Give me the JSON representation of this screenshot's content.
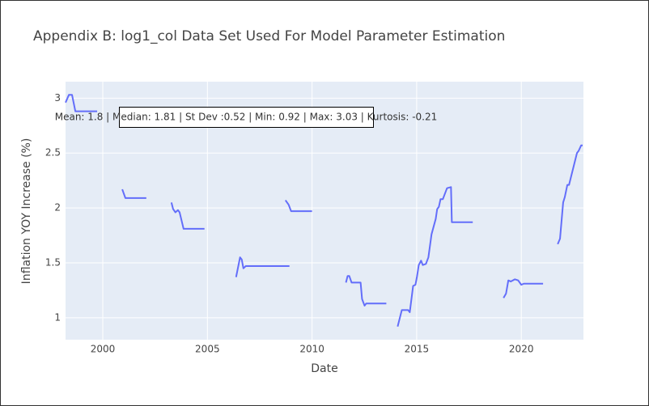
{
  "chart_data": {
    "type": "line",
    "title": "Appendix B: log1_col Data Set Used For Model Parameter Estimation",
    "x_label": "Date",
    "y_label": "Inflation YOY Increase (%)",
    "annotation": "Mean: 1.8 | Median: 1.81 | St Dev :0.52 | Min: 0.92 | Max: 3.03 | Kurtosis: -0.21",
    "xlim": [
      1998.22,
      2022.97
    ],
    "ylim": [
      0.8,
      3.15
    ],
    "xticks": [
      2000,
      2005,
      2010,
      2015,
      2020
    ],
    "yticks": [
      1,
      1.5,
      2,
      2.5,
      3
    ],
    "grid": true,
    "x": [
      1998.22,
      1998.38,
      1998.53,
      1998.69,
      1999.73,
      null,
      2000.93,
      2001.08,
      2002.08,
      null,
      2003.28,
      2003.36,
      2003.47,
      2003.59,
      2003.67,
      2003.86,
      2004.86,
      null,
      2006.37,
      2006.56,
      2006.64,
      2006.72,
      2006.83,
      2008.92,
      null,
      2008.73,
      2008.88,
      2009.0,
      2010.0,
      null,
      2011.62,
      2011.7,
      2011.78,
      2011.89,
      2012.32,
      2012.39,
      2012.51,
      2012.59,
      2013.55,
      null,
      2014.09,
      2014.29,
      2014.59,
      2014.67,
      2014.83,
      2014.94,
      2015.02,
      2015.1,
      2015.21,
      2015.29,
      2015.44,
      2015.56,
      2015.71,
      2015.91,
      2015.98,
      2016.06,
      2016.14,
      2016.25,
      2016.45,
      2016.64,
      2016.68,
      2017.68,
      null,
      2019.15,
      2019.27,
      2019.38,
      2019.5,
      2019.69,
      2019.85,
      2020.0,
      2020.12,
      2021.04,
      null,
      2021.74,
      2021.85,
      2022.0,
      2022.08,
      2022.2,
      2022.28,
      2022.66,
      2022.74,
      2022.86,
      2022.93
    ],
    "series": [
      {
        "name": "log1_col",
        "color": "#636efa",
        "values": [
          2.96,
          3.03,
          3.03,
          2.88,
          2.88,
          null,
          2.17,
          2.09,
          2.09,
          null,
          2.05,
          1.99,
          1.96,
          1.98,
          1.96,
          1.81,
          1.81,
          null,
          1.37,
          1.55,
          1.53,
          1.45,
          1.47,
          1.47,
          null,
          2.07,
          2.03,
          1.97,
          1.97,
          null,
          1.32,
          1.38,
          1.38,
          1.32,
          1.32,
          1.17,
          1.11,
          1.13,
          1.13,
          null,
          0.92,
          1.07,
          1.07,
          1.05,
          1.29,
          1.3,
          1.38,
          1.48,
          1.52,
          1.48,
          1.49,
          1.55,
          1.76,
          1.9,
          1.99,
          2.01,
          2.08,
          2.08,
          2.18,
          2.19,
          1.87,
          1.87,
          null,
          1.18,
          1.22,
          1.34,
          1.33,
          1.35,
          1.34,
          1.3,
          1.31,
          1.31,
          null,
          1.67,
          1.72,
          2.05,
          2.1,
          2.21,
          2.21,
          2.5,
          2.52,
          2.57,
          2.57
        ]
      }
    ]
  }
}
